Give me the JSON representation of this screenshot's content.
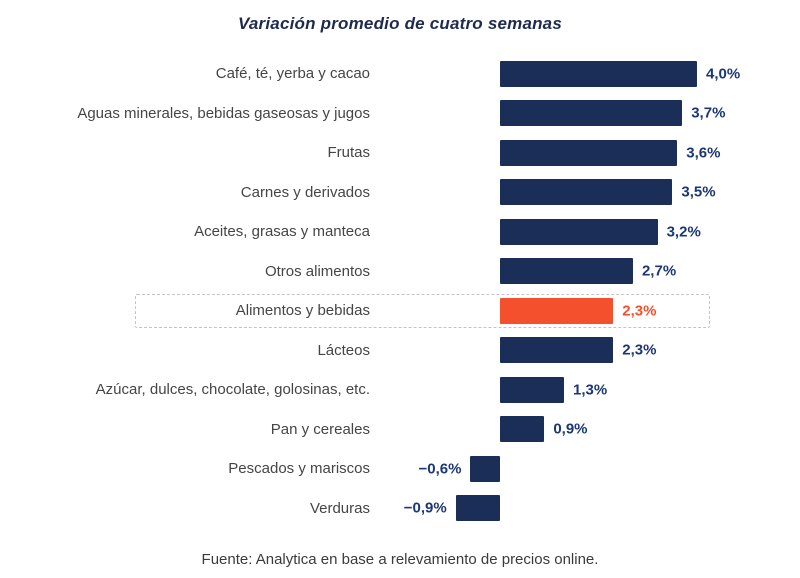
{
  "chart_data": {
    "type": "bar",
    "orientation": "horizontal",
    "title": "Variación promedio de cuatro semanas",
    "source": "Fuente: Analytica en base a relevamiento de precios online.",
    "categories": [
      "Café, té, yerba y cacao",
      "Aguas minerales, bebidas gaseosas y jugos",
      "Frutas",
      "Carnes y derivados",
      "Aceites, grasas y manteca",
      "Otros alimentos",
      "Alimentos y bebidas",
      "Lácteos",
      "Azúcar, dulces, chocolate, golosinas, etc.",
      "Pan y cereales",
      "Pescados y mariscos",
      "Verduras"
    ],
    "values": [
      4.0,
      3.7,
      3.6,
      3.5,
      3.2,
      2.7,
      2.3,
      2.3,
      1.3,
      0.9,
      -0.6,
      -0.9
    ],
    "value_labels": [
      "4,0%",
      "3,7%",
      "3,6%",
      "3,5%",
      "3,2%",
      "2,7%",
      "2,3%",
      "2,3%",
      "1,3%",
      "0,9%",
      "−0,6%",
      "−0,9%"
    ],
    "highlight_index": 6,
    "highlight_category": "Alimentos y bebidas",
    "xlim": [
      -1.0,
      4.2
    ],
    "grid": false,
    "legend": false,
    "colors": {
      "bar": "#1b2e58",
      "highlight_bar": "#f5502e",
      "value_text": "#1c3775",
      "highlight_value_text": "#f5502e",
      "label_text": "#454545",
      "dashed_border": "#c4c4c4"
    }
  }
}
